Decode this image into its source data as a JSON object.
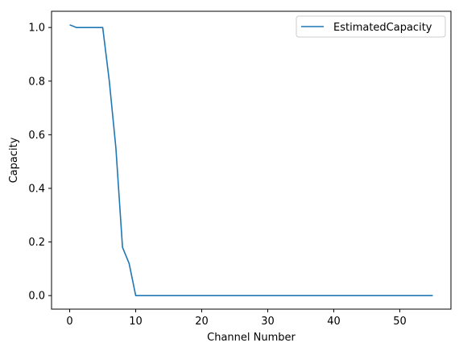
{
  "chart_data": {
    "type": "line",
    "xlabel": "Channel Number",
    "ylabel": "Capacity",
    "xlim": [
      -2.75,
      57.75
    ],
    "ylim": [
      -0.0505,
      1.0605
    ],
    "xticks": [
      0,
      10,
      20,
      30,
      40,
      50
    ],
    "yticks": [
      0.0,
      0.2,
      0.4,
      0.6,
      0.8,
      1.0
    ],
    "xtick_labels": [
      "0",
      "10",
      "20",
      "30",
      "40",
      "50"
    ],
    "ytick_labels": [
      "0.0",
      "0.2",
      "0.4",
      "0.6",
      "0.8",
      "1.0"
    ],
    "grid": false,
    "legend": "upper right",
    "series": [
      {
        "name": "EstimatedCapacity",
        "color": "#1f77b4",
        "x": [
          0,
          1,
          2,
          3,
          4,
          5,
          6,
          7,
          8,
          9,
          10,
          11,
          12,
          13,
          14,
          15,
          16,
          17,
          18,
          19,
          20,
          21,
          22,
          23,
          24,
          25,
          26,
          27,
          28,
          29,
          30,
          31,
          32,
          33,
          34,
          35,
          36,
          37,
          38,
          39,
          40,
          41,
          42,
          43,
          44,
          45,
          46,
          47,
          48,
          49,
          50,
          51,
          52,
          53,
          54,
          55
        ],
        "values": [
          1.01,
          1.0,
          1.0,
          1.0,
          1.0,
          1.0,
          0.8,
          0.55,
          0.18,
          0.12,
          0.0,
          0.0,
          0.0,
          0.0,
          0.0,
          0.0,
          0.0,
          0.0,
          0.0,
          0.0,
          0.0,
          0.0,
          0.0,
          0.0,
          0.0,
          0.0,
          0.0,
          0.0,
          0.0,
          0.0,
          0.0,
          0.0,
          0.0,
          0.0,
          0.0,
          0.0,
          0.0,
          0.0,
          0.0,
          0.0,
          0.0,
          0.0,
          0.0,
          0.0,
          0.0,
          0.0,
          0.0,
          0.0,
          0.0,
          0.0,
          0.0,
          0.0,
          0.0,
          0.0,
          0.0,
          0.0
        ]
      }
    ]
  }
}
